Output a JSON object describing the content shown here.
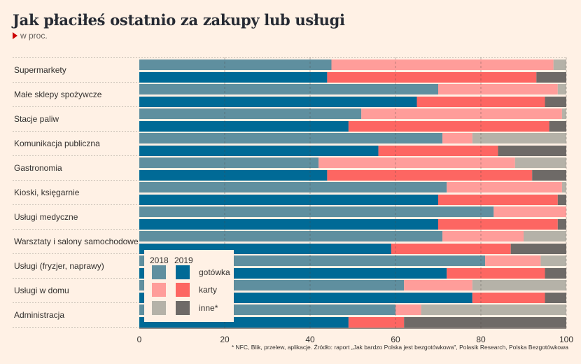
{
  "title": "Jak płaciłeś ostatnio za zakupy lub usługi",
  "subtitle": "w proc.",
  "footnote": "* NFC, Blik, przelew, aplikacje. Źródło: raport „Jak bardzo Polska jest bezgotówkowa\", Polasik Research, Polska Bezgotówkowa",
  "legend": {
    "year_a": "2018",
    "year_b": "2019",
    "items": [
      "gotówka",
      "karty",
      "inne*"
    ]
  },
  "colors": {
    "gotowka_2018": "#5f8f9f",
    "karty_2018": "#ff9d9a",
    "inne_2018": "#b5b2a8",
    "gotowka_2019": "#006a96",
    "karty_2019": "#fd6662",
    "inne_2019": "#6e6a67"
  },
  "chart_data": {
    "type": "bar",
    "orientation": "horizontal",
    "stacked": true,
    "xlim": [
      0,
      100
    ],
    "xticks": [
      "0",
      "20",
      "40",
      "60",
      "80",
      "100"
    ],
    "series": [
      "gotówka",
      "karty",
      "inne*"
    ],
    "categories": [
      {
        "name": "Supermarkety",
        "y2018": [
          45,
          52,
          3
        ],
        "y2019": [
          44,
          49,
          7
        ]
      },
      {
        "name": "Małe sklepy spożywcze",
        "y2018": [
          70,
          28,
          2
        ],
        "y2019": [
          65,
          30,
          5
        ]
      },
      {
        "name": "Stacje paliw",
        "y2018": [
          52,
          47,
          1
        ],
        "y2019": [
          49,
          47,
          4
        ]
      },
      {
        "name": "Komunikacja publiczna",
        "y2018": [
          71,
          7,
          22
        ],
        "y2019": [
          56,
          28,
          16
        ]
      },
      {
        "name": "Gastronomia",
        "y2018": [
          42,
          46,
          12
        ],
        "y2019": [
          44,
          48,
          8
        ]
      },
      {
        "name": "Kioski, księgarnie",
        "y2018": [
          72,
          27,
          1
        ],
        "y2019": [
          70,
          28,
          2
        ]
      },
      {
        "name": "Usługi medyczne",
        "y2018": [
          83,
          17,
          0
        ],
        "y2019": [
          70,
          28,
          2
        ]
      },
      {
        "name": "Warsztaty i salony samochodowe",
        "y2018": [
          71,
          19,
          10
        ],
        "y2019": [
          59,
          28,
          13
        ]
      },
      {
        "name": "Usługi (fryzjer, naprawy)",
        "y2018": [
          81,
          13,
          6
        ],
        "y2019": [
          72,
          23,
          5
        ]
      },
      {
        "name": "Usługi w domu",
        "y2018": [
          62,
          16,
          22
        ],
        "y2019": [
          78,
          17,
          5
        ]
      },
      {
        "name": "Administracja",
        "y2018": [
          60,
          6,
          34
        ],
        "y2019": [
          49,
          13,
          38
        ]
      }
    ]
  }
}
